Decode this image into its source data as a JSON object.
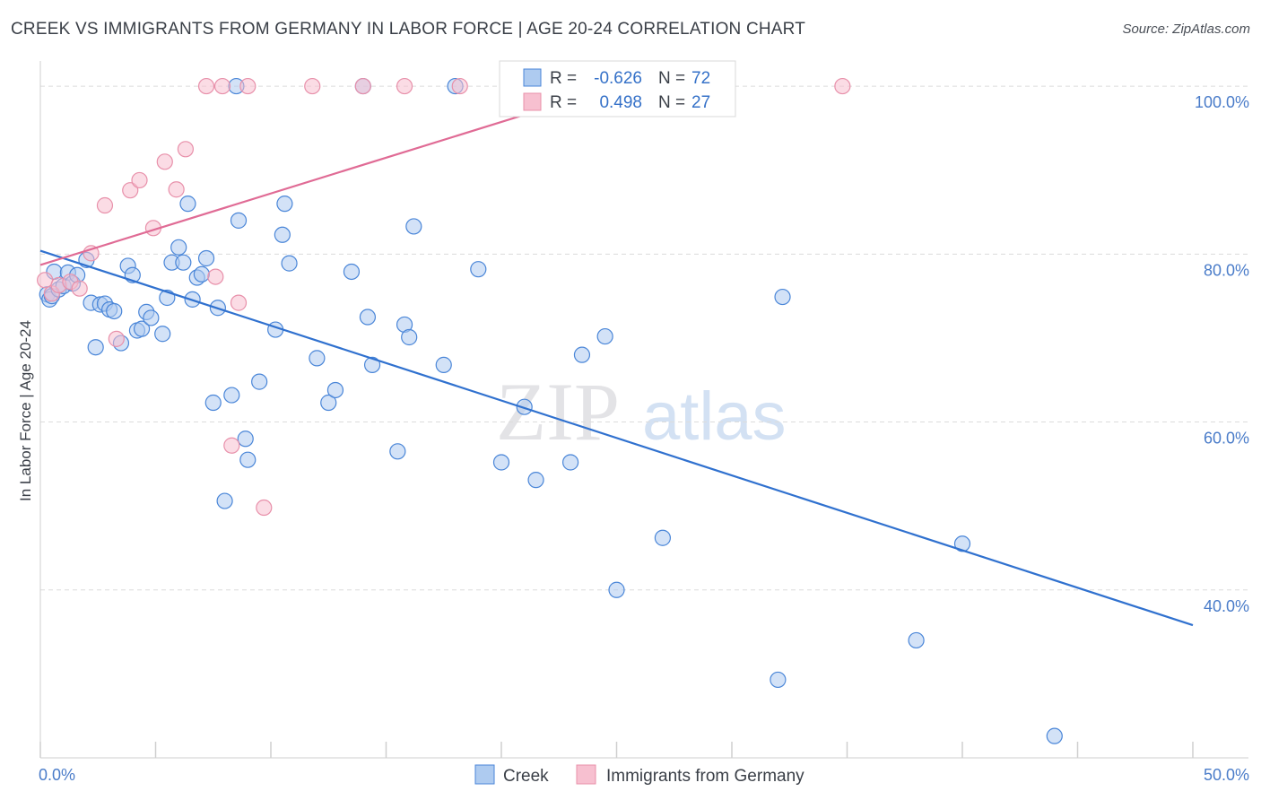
{
  "title": "CREEK VS IMMIGRANTS FROM GERMANY IN LABOR FORCE | AGE 20-24 CORRELATION CHART",
  "source": "Source: ZipAtlas.com",
  "watermark": {
    "zip": "ZIP",
    "atlas": "atlas"
  },
  "legend": {
    "r_label": "R =",
    "n_label": "N =",
    "items": [
      {
        "r_value": "-0.626",
        "n_value": "72"
      },
      {
        "r_value": "0.498",
        "n_value": "27"
      }
    ]
  },
  "colors": {
    "creek_fill": "#aecbf0",
    "creek_stroke": "#4a86d8",
    "creek_line": "#3071cf",
    "germany_fill": "#f7c0d0",
    "germany_stroke": "#e890aa",
    "germany_line": "#e06b95",
    "grid": "#dcdcdc",
    "axis": "#cfcfcf",
    "tick_text": "#4a7cc9"
  },
  "chart_data": {
    "type": "scatter",
    "title": "CREEK VS IMMIGRANTS FROM GERMANY IN LABOR FORCE | AGE 20-24 CORRELATION CHART",
    "xlabel": "",
    "ylabel": "In Labor Force | Age 20-24",
    "xlim": [
      0,
      50
    ],
    "ylim": [
      20,
      103
    ],
    "x_tick_labels": [
      "0.0%",
      "50.0%"
    ],
    "y_ticks": [
      100,
      80,
      60,
      40
    ],
    "y_tick_labels": [
      "100.0%",
      "80.0%",
      "60.0%",
      "40.0%"
    ],
    "grid": true,
    "legend_position": "top-center",
    "series": [
      {
        "name": "Creek",
        "r": -0.626,
        "n": 72,
        "trend": {
          "x": [
            0,
            50
          ],
          "y": [
            80.4,
            35.8
          ]
        },
        "points": [
          [
            0.3,
            75.2
          ],
          [
            0.4,
            74.6
          ],
          [
            0.5,
            75.0
          ],
          [
            0.6,
            77.9
          ],
          [
            0.8,
            75.8
          ],
          [
            1.0,
            76.2
          ],
          [
            1.2,
            77.8
          ],
          [
            1.4,
            76.5
          ],
          [
            1.6,
            77.5
          ],
          [
            2.0,
            79.3
          ],
          [
            2.2,
            74.2
          ],
          [
            2.4,
            68.9
          ],
          [
            2.6,
            74.0
          ],
          [
            2.8,
            74.1
          ],
          [
            3.0,
            73.4
          ],
          [
            3.2,
            73.2
          ],
          [
            3.5,
            69.4
          ],
          [
            3.8,
            78.6
          ],
          [
            4.0,
            77.5
          ],
          [
            4.2,
            70.9
          ],
          [
            4.4,
            71.1
          ],
          [
            4.6,
            73.1
          ],
          [
            4.8,
            72.4
          ],
          [
            5.3,
            70.5
          ],
          [
            5.5,
            74.8
          ],
          [
            5.7,
            79.0
          ],
          [
            6.0,
            80.8
          ],
          [
            6.2,
            79.0
          ],
          [
            6.4,
            86.0
          ],
          [
            6.6,
            74.6
          ],
          [
            6.8,
            77.2
          ],
          [
            7.0,
            77.6
          ],
          [
            7.2,
            79.5
          ],
          [
            7.5,
            62.3
          ],
          [
            7.7,
            73.6
          ],
          [
            8.0,
            50.6
          ],
          [
            8.3,
            63.2
          ],
          [
            8.6,
            84.0
          ],
          [
            8.9,
            58.0
          ],
          [
            9.0,
            55.5
          ],
          [
            9.5,
            64.8
          ],
          [
            10.2,
            71.0
          ],
          [
            10.5,
            82.3
          ],
          [
            10.6,
            86.0
          ],
          [
            10.8,
            78.9
          ],
          [
            12.0,
            67.6
          ],
          [
            12.5,
            62.3
          ],
          [
            12.8,
            63.8
          ],
          [
            13.5,
            77.9
          ],
          [
            14.2,
            72.5
          ],
          [
            14.4,
            66.8
          ],
          [
            15.5,
            56.5
          ],
          [
            15.8,
            71.6
          ],
          [
            16.0,
            70.1
          ],
          [
            16.2,
            83.3
          ],
          [
            17.5,
            66.8
          ],
          [
            19.0,
            78.2
          ],
          [
            20.0,
            55.2
          ],
          [
            21.0,
            61.8
          ],
          [
            21.5,
            53.1
          ],
          [
            23.0,
            55.2
          ],
          [
            23.5,
            68.0
          ],
          [
            24.5,
            70.2
          ],
          [
            25.0,
            40.0
          ],
          [
            27.0,
            46.2
          ],
          [
            32.0,
            29.3
          ],
          [
            32.2,
            74.9
          ],
          [
            38.0,
            34.0
          ],
          [
            40.0,
            45.5
          ],
          [
            44.0,
            22.6
          ],
          [
            8.5,
            100.0
          ],
          [
            14.0,
            100.0
          ],
          [
            18.0,
            100.0
          ]
        ]
      },
      {
        "name": "Immigrants from Germany",
        "r": 0.498,
        "n": 27,
        "trend": {
          "x": [
            0,
            25
          ],
          "y": [
            78.7,
            100.0
          ]
        },
        "points": [
          [
            0.2,
            76.9
          ],
          [
            0.5,
            75.3
          ],
          [
            0.8,
            76.3
          ],
          [
            1.3,
            76.7
          ],
          [
            1.7,
            75.9
          ],
          [
            2.2,
            80.1
          ],
          [
            2.8,
            85.8
          ],
          [
            3.3,
            69.9
          ],
          [
            3.9,
            87.6
          ],
          [
            4.3,
            88.8
          ],
          [
            4.9,
            83.1
          ],
          [
            5.4,
            91.0
          ],
          [
            5.9,
            87.7
          ],
          [
            6.3,
            92.5
          ],
          [
            7.2,
            100.0
          ],
          [
            7.6,
            77.3
          ],
          [
            7.9,
            100.0
          ],
          [
            8.3,
            57.2
          ],
          [
            8.6,
            74.2
          ],
          [
            9.0,
            100.0
          ],
          [
            9.7,
            49.8
          ],
          [
            11.8,
            100.0
          ],
          [
            14.0,
            100.0
          ],
          [
            15.8,
            100.0
          ],
          [
            18.2,
            100.0
          ],
          [
            23.8,
            100.0
          ],
          [
            34.8,
            100.0
          ]
        ]
      }
    ]
  }
}
